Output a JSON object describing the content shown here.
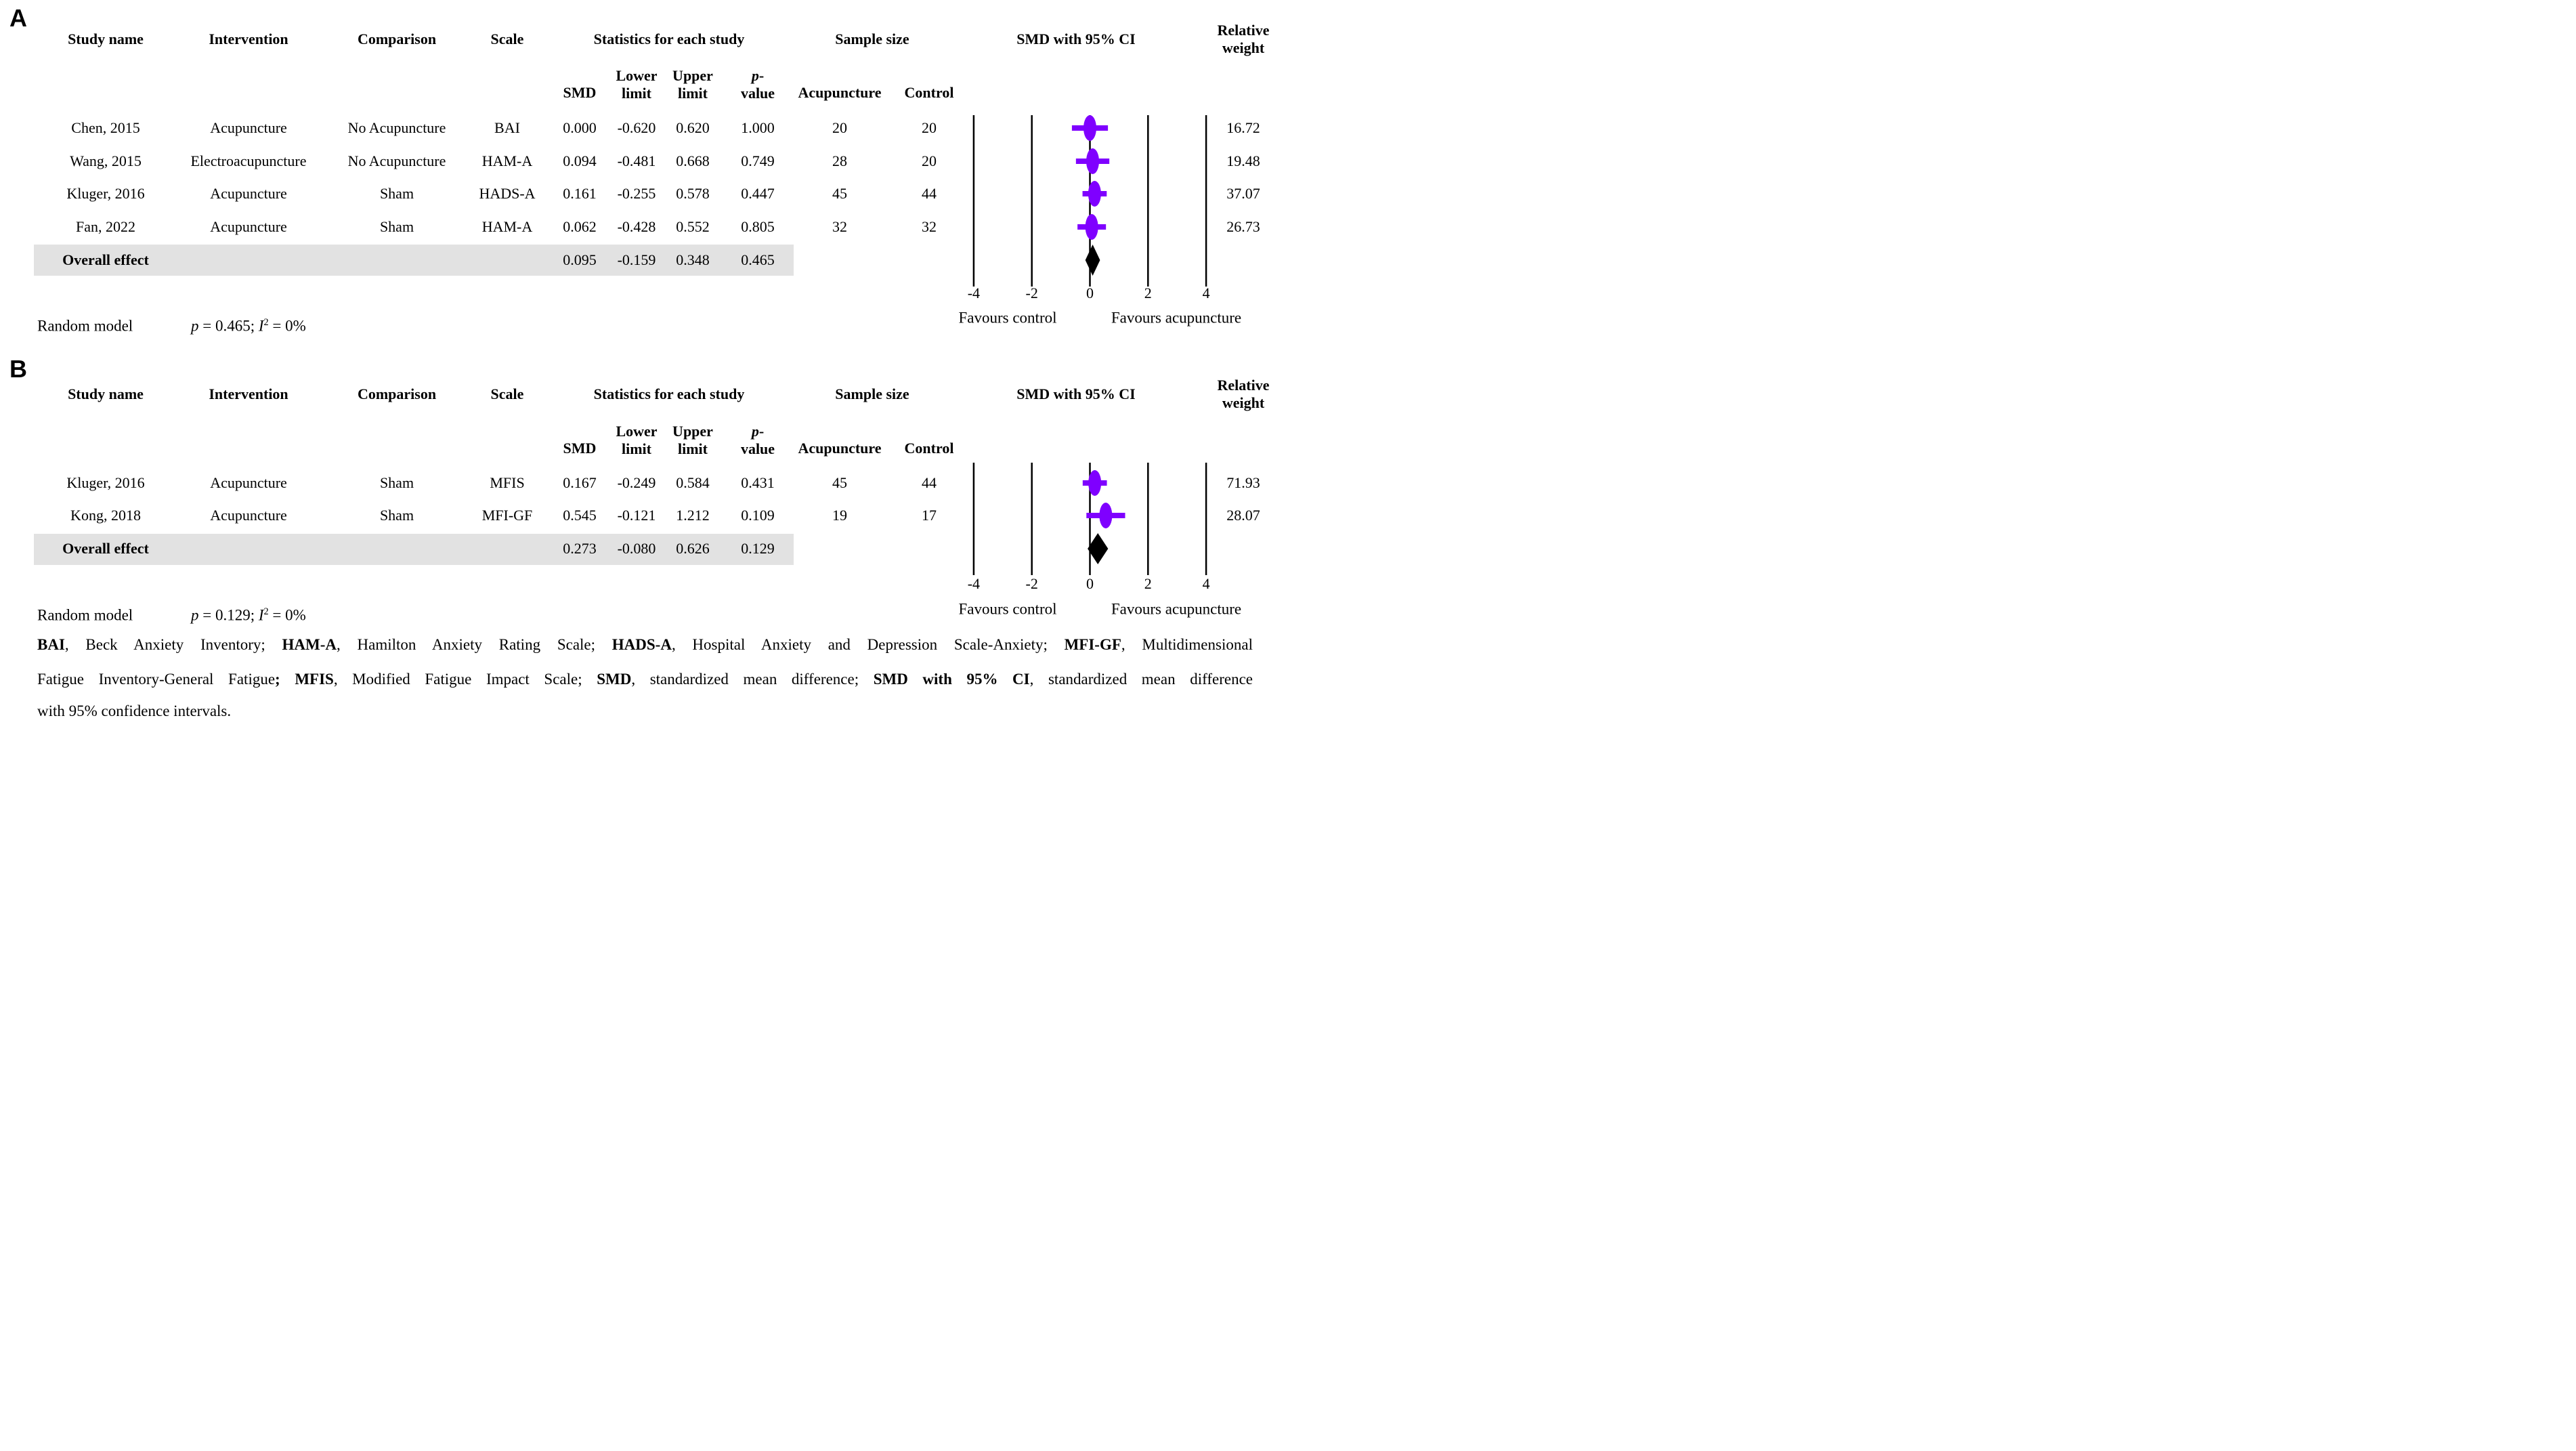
{
  "colors": {
    "marker": "#7f00ff",
    "diamond": "#000000",
    "overall_band": "#e2e2e2",
    "line": "#000000"
  },
  "chart_data": [
    {
      "type": "scatter",
      "subtype": "forest-plot",
      "panel_label": "A",
      "headers": {
        "study": "Study name",
        "intervention": "Intervention",
        "comparison": "Comparison",
        "scale": "Scale",
        "statistics_group": "Statistics for each study",
        "smd": "SMD",
        "lower": [
          [
            {
              "t": "Lower"
            }
          ],
          [
            {
              "t": "limit"
            }
          ]
        ],
        "upper": [
          [
            {
              "t": "Upper"
            }
          ],
          [
            {
              "t": "limit"
            }
          ]
        ],
        "pvalue": [
          [
            {
              "t": "p",
              "i": true
            },
            {
              "t": "-"
            }
          ],
          [
            {
              "t": "value"
            }
          ]
        ],
        "sample_group": "Sample size",
        "acupuncture": "Acupuncture",
        "control": "Control",
        "ci_plot": "SMD with 95% CI",
        "weight": [
          [
            {
              "t": "Relative"
            }
          ],
          [
            {
              "t": "weight"
            }
          ]
        ]
      },
      "rows": [
        {
          "study": "Chen, 2015",
          "intervention": "Acupuncture",
          "comparison": "No Acupuncture",
          "scale": "BAI",
          "smd": "0.000",
          "lower": "-0.620",
          "upper": "0.620",
          "pvalue": "1.000",
          "acupuncture": "20",
          "control": "20",
          "weight": "16.72"
        },
        {
          "study": "Wang, 2015",
          "intervention": "Electroacupuncture",
          "comparison": "No Acupuncture",
          "scale": "HAM-A",
          "smd": "0.094",
          "lower": "-0.481",
          "upper": "0.668",
          "pvalue": "0.749",
          "acupuncture": "28",
          "control": "20",
          "weight": "19.48"
        },
        {
          "study": "Kluger, 2016",
          "intervention": "Acupuncture",
          "comparison": "Sham",
          "scale": "HADS-A",
          "smd": "0.161",
          "lower": "-0.255",
          "upper": "0.578",
          "pvalue": "0.447",
          "acupuncture": "45",
          "control": "44",
          "weight": "37.07"
        },
        {
          "study": "Fan, 2022",
          "intervention": "Acupuncture",
          "comparison": "Sham",
          "scale": "HAM-A",
          "smd": "0.062",
          "lower": "-0.428",
          "upper": "0.552",
          "pvalue": "0.805",
          "acupuncture": "32",
          "control": "32",
          "weight": "26.73"
        }
      ],
      "overall": {
        "label": "Overall effect",
        "smd": "0.095",
        "lower": "-0.159",
        "upper": "0.348",
        "pvalue": "0.465"
      },
      "axis": {
        "range": [
          -4,
          4
        ],
        "ticks": [
          "-4",
          "-2",
          "0",
          "2",
          "4"
        ],
        "left_label": "Favours control",
        "right_label": "Favours acupuncture"
      },
      "model": {
        "name": "Random model",
        "p": "0.465",
        "i2": "0%",
        "stats_runs": [
          [
            {
              "t": "p",
              "i": true
            },
            {
              "t": " = 0.465; "
            },
            {
              "t": "I",
              "i": true
            },
            {
              "t": "2",
              "sup": true
            },
            {
              "t": " = 0%"
            }
          ]
        ]
      }
    },
    {
      "type": "scatter",
      "subtype": "forest-plot",
      "panel_label": "B",
      "headers": {
        "study": "Study name",
        "intervention": "Intervention",
        "comparison": "Comparison",
        "scale": "Scale",
        "statistics_group": "Statistics for each study",
        "smd": "SMD",
        "lower": [
          [
            {
              "t": "Lower"
            }
          ],
          [
            {
              "t": "limit"
            }
          ]
        ],
        "upper": [
          [
            {
              "t": "Upper"
            }
          ],
          [
            {
              "t": "limit"
            }
          ]
        ],
        "pvalue": [
          [
            {
              "t": "p",
              "i": true
            },
            {
              "t": "-"
            }
          ],
          [
            {
              "t": "value"
            }
          ]
        ],
        "sample_group": "Sample size",
        "acupuncture": "Acupuncture",
        "control": "Control",
        "ci_plot": "SMD with 95% CI",
        "weight": [
          [
            {
              "t": "Relative"
            }
          ],
          [
            {
              "t": "weight"
            }
          ]
        ]
      },
      "rows": [
        {
          "study": "Kluger, 2016",
          "intervention": "Acupuncture",
          "comparison": "Sham",
          "scale": "MFIS",
          "smd": "0.167",
          "lower": "-0.249",
          "upper": "0.584",
          "pvalue": "0.431",
          "acupuncture": "45",
          "control": "44",
          "weight": "71.93"
        },
        {
          "study": "Kong, 2018",
          "intervention": "Acupuncture",
          "comparison": "Sham",
          "scale": "MFI-GF",
          "smd": "0.545",
          "lower": "-0.121",
          "upper": "1.212",
          "pvalue": "0.109",
          "acupuncture": "19",
          "control": "17",
          "weight": "28.07"
        }
      ],
      "overall": {
        "label": "Overall effect",
        "smd": "0.273",
        "lower": "-0.080",
        "upper": "0.626",
        "pvalue": "0.129"
      },
      "axis": {
        "range": [
          -4,
          4
        ],
        "ticks": [
          "-4",
          "-2",
          "0",
          "2",
          "4"
        ],
        "left_label": "Favours control",
        "right_label": "Favours acupuncture"
      },
      "model": {
        "name": "Random model",
        "p": "0.129",
        "i2": "0%",
        "stats_runs": [
          [
            {
              "t": "p",
              "i": true
            },
            {
              "t": " = 0.129; "
            },
            {
              "t": "I",
              "i": true
            },
            {
              "t": "2",
              "sup": true
            },
            {
              "t": " = 0%"
            }
          ]
        ]
      }
    }
  ],
  "footnote_lines": [
    [
      {
        "t": "BAI",
        "b": true
      },
      {
        "t": ", Beck Anxiety Inventory; "
      },
      {
        "t": "HAM-A",
        "b": true
      },
      {
        "t": ", Hamilton Anxiety Rating Scale; "
      },
      {
        "t": "HADS-A",
        "b": true
      },
      {
        "t": ", Hospital Anxiety and Depression Scale-Anxiety; "
      },
      {
        "t": "MFI-GF",
        "b": true
      },
      {
        "t": ", Multidimensional"
      }
    ],
    [
      {
        "t": "Fatigue Inventory-General Fatigue"
      },
      {
        "t": ";",
        "b": true
      },
      {
        "t": " "
      },
      {
        "t": "MFIS",
        "b": true
      },
      {
        "t": ", Modified Fatigue Impact Scale; "
      },
      {
        "t": "SMD",
        "b": true
      },
      {
        "t": ", standardized mean difference; "
      },
      {
        "t": "SMD with 95% CI",
        "b": true
      },
      {
        "t": ", standardized mean difference"
      }
    ],
    [
      {
        "t": "with 95% confidence intervals."
      }
    ]
  ]
}
